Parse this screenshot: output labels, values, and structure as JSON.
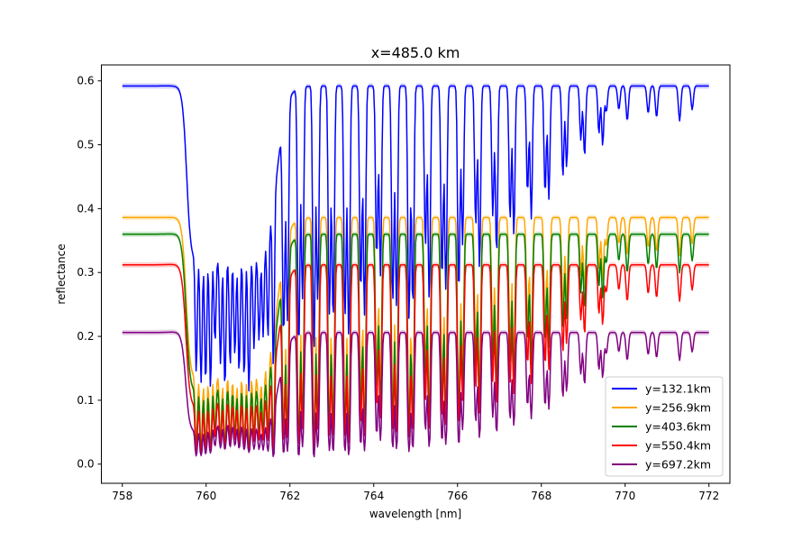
{
  "chart_data": {
    "type": "line",
    "title": "x=485.0 km",
    "xlabel": "wavelength [nm]",
    "ylabel": "reflectance",
    "xlim": [
      757.5,
      772.5
    ],
    "ylim": [
      -0.03,
      0.625
    ],
    "xticks": [
      "758",
      "760",
      "762",
      "764",
      "766",
      "768",
      "770",
      "772"
    ],
    "yticks": [
      "0.0",
      "0.1",
      "0.2",
      "0.3",
      "0.4",
      "0.5",
      "0.6"
    ],
    "grid": false,
    "legend_position": "lower-right",
    "uncertainty_band": true,
    "wavelength_range_nm": [
      758,
      772
    ],
    "sample_step_nm": 0.02,
    "series": [
      {
        "name": "y=132.1km",
        "color": "#0000ff",
        "continuum": 0.592
      },
      {
        "name": "y=256.9km",
        "color": "#ffa500",
        "continuum": 0.386
      },
      {
        "name": "y=403.6km",
        "color": "#008000",
        "continuum": 0.36
      },
      {
        "name": "y=550.4km",
        "color": "#ff0000",
        "continuum": 0.312
      },
      {
        "name": "y=697.2km",
        "color": "#800080",
        "continuum": 0.206
      }
    ]
  }
}
